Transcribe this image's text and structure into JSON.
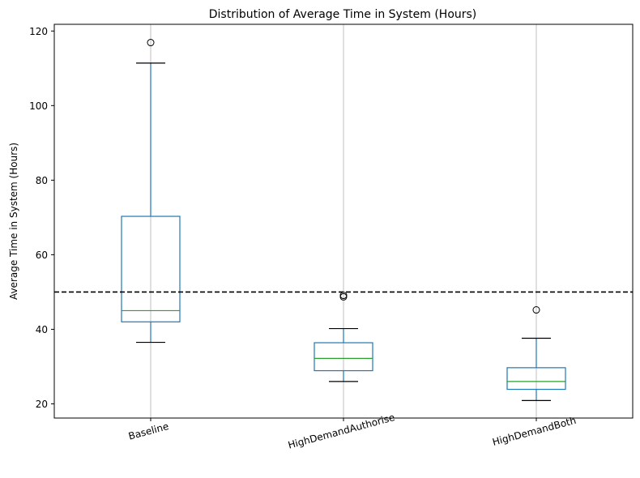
{
  "chart_data": {
    "type": "box",
    "title": "Distribution of Average Time in System (Hours)",
    "xlabel": "",
    "ylabel": "Average Time in System (Hours)",
    "ylim": [
      16.2,
      121.8
    ],
    "yticks": [
      20,
      40,
      60,
      80,
      100,
      120
    ],
    "grid": "vertical",
    "categories": [
      "Baseline",
      "HighDemandAuthorise",
      "HighDemandBoth"
    ],
    "boxes": [
      {
        "whisker_low": 36.5,
        "q1": 42.0,
        "median": 45.0,
        "q3": 70.3,
        "whisker_high": 111.4,
        "outliers": [
          116.9
        ]
      },
      {
        "whisker_low": 26.0,
        "q1": 28.9,
        "median": 32.2,
        "q3": 36.4,
        "whisker_high": 40.2,
        "outliers": [
          48.7,
          49.1
        ]
      },
      {
        "whisker_low": 20.9,
        "q1": 23.9,
        "median": 26.0,
        "q3": 29.7,
        "whisker_high": 37.6,
        "outliers": [
          45.2
        ]
      }
    ],
    "reference_line": {
      "y": 50,
      "style": "dashed",
      "color": "#000000"
    },
    "colors": {
      "box": "#1f77b4",
      "median": "#2ca02c",
      "whisker_cap": "#000000",
      "grid": "#b0b0b0"
    }
  }
}
